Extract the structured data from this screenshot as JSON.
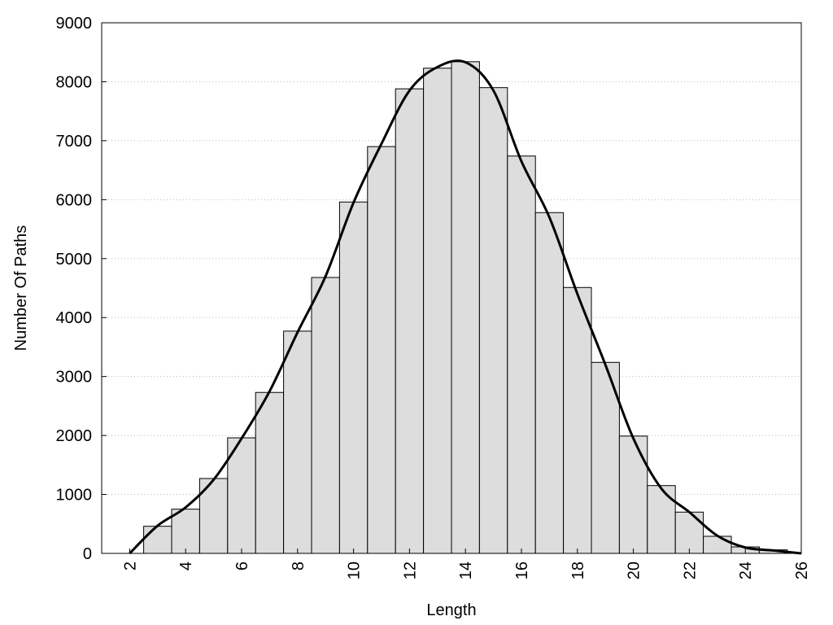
{
  "chart_data": {
    "type": "histogram",
    "x_label": "Length",
    "y_label": "Number Of Paths",
    "bins": [
      2.5,
      3.5,
      4.5,
      5.5,
      6.5,
      7.5,
      8.5,
      9.5,
      10.5,
      11.5,
      12.5,
      13.5,
      14.5,
      15.5,
      16.5,
      17.5,
      18.5,
      19.5,
      20.5,
      21.5,
      22.5,
      23.5,
      24.5,
      25.5
    ],
    "values": [
      460,
      750,
      1270,
      1960,
      2730,
      3770,
      4680,
      5960,
      6900,
      7880,
      8230,
      8340,
      7900,
      6740,
      5780,
      4510,
      3240,
      1990,
      1150,
      700,
      290,
      110,
      60
    ],
    "color": "#dddddd",
    "curve": {
      "color": "#000000",
      "x": [
        2,
        3,
        4,
        5,
        6,
        7,
        8,
        9,
        10,
        11,
        12,
        13,
        14,
        15,
        16,
        17,
        18,
        19,
        20,
        21,
        22,
        23,
        24,
        25,
        26
      ],
      "values": [
        0,
        470,
        780,
        1250,
        1950,
        2750,
        3750,
        4700,
        5950,
        6950,
        7850,
        8250,
        8330,
        7850,
        6650,
        5700,
        4400,
        3200,
        1950,
        1100,
        700,
        300,
        100,
        50,
        0
      ]
    },
    "xlim": [
      1,
      26
    ],
    "ylim": [
      0,
      9000
    ],
    "xticks": [
      2,
      4,
      6,
      8,
      10,
      12,
      14,
      16,
      18,
      20,
      22,
      24,
      26
    ],
    "yticks": [
      0,
      1000,
      2000,
      3000,
      4000,
      5000,
      6000,
      7000,
      8000,
      9000
    ],
    "grid": true
  }
}
